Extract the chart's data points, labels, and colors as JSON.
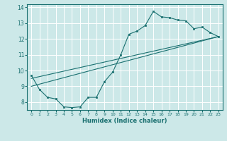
{
  "xlabel": "Humidex (Indice chaleur)",
  "bg_color": "#cce8e8",
  "grid_color": "#ffffff",
  "line_color": "#1a7070",
  "xlim": [
    -0.5,
    23.5
  ],
  "ylim": [
    7.5,
    14.2
  ],
  "xticks": [
    0,
    1,
    2,
    3,
    4,
    5,
    6,
    7,
    8,
    9,
    10,
    11,
    12,
    13,
    14,
    15,
    16,
    17,
    18,
    19,
    20,
    21,
    22,
    23
  ],
  "yticks": [
    8,
    9,
    10,
    11,
    12,
    13,
    14
  ],
  "line1": {
    "x": [
      0,
      1,
      2,
      3,
      4,
      5,
      6,
      7,
      8,
      9,
      10,
      11,
      12,
      13,
      14,
      15,
      16,
      17,
      18,
      19,
      20,
      21,
      22,
      23
    ],
    "y": [
      9.7,
      8.8,
      8.3,
      8.2,
      7.7,
      7.65,
      7.7,
      8.3,
      8.3,
      9.3,
      9.9,
      11.0,
      12.3,
      12.5,
      12.85,
      13.75,
      13.4,
      13.35,
      13.2,
      13.15,
      12.65,
      12.75,
      12.4,
      12.15
    ]
  },
  "line2": {
    "x": [
      0,
      23
    ],
    "y": [
      9.5,
      12.15
    ]
  },
  "line3": {
    "x": [
      0,
      23
    ],
    "y": [
      9.0,
      12.15
    ]
  }
}
